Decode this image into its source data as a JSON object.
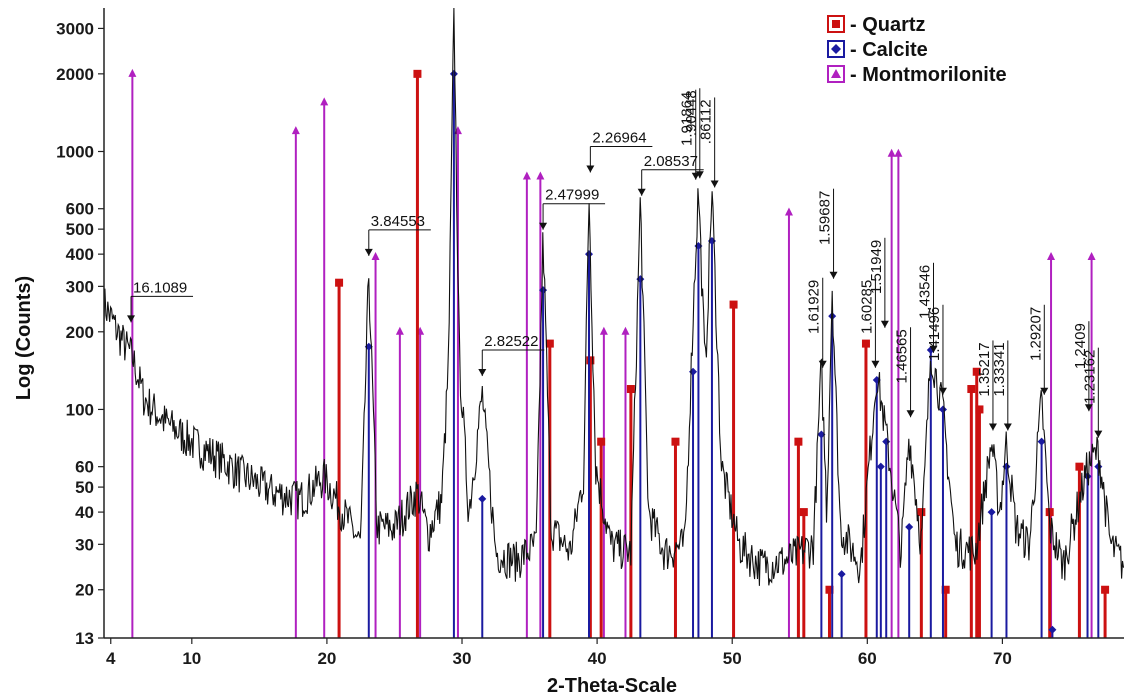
{
  "chart_data": {
    "type": "line",
    "xlabel": "2-Theta-Scale",
    "ylabel": "Log (Counts)",
    "y_scale": "log",
    "xlim": [
      3.5,
      79
    ],
    "ylim": [
      13,
      3600
    ],
    "x_ticks": [
      4,
      10,
      20,
      30,
      40,
      50,
      60,
      70
    ],
    "y_ticks": [
      13,
      20,
      30,
      40,
      50,
      60,
      100,
      200,
      300,
      400,
      500,
      600,
      1000,
      2000,
      3000
    ],
    "colors": {
      "quartz": "#cc1111",
      "calcite": "#1a1aa0",
      "montmorillonite": "#b020c0",
      "pattern": "#111111"
    },
    "legend": {
      "placement": "top-right",
      "entries": [
        {
          "label": "- Quartz",
          "marker": "square",
          "color": "#cc1111"
        },
        {
          "label": "- Calcite",
          "marker": "diamond",
          "color": "#1a1aa0"
        },
        {
          "label": "- Montmorilonite",
          "marker": "triangle",
          "color": "#b020c0"
        }
      ]
    },
    "reference_lines": {
      "quartz": [
        [
          20.9,
          310
        ],
        [
          26.7,
          2000
        ],
        [
          36.5,
          180
        ],
        [
          39.5,
          155
        ],
        [
          40.3,
          75
        ],
        [
          42.5,
          120
        ],
        [
          45.8,
          75
        ],
        [
          50.1,
          255
        ],
        [
          54.9,
          75
        ],
        [
          55.3,
          40
        ],
        [
          57.2,
          20
        ],
        [
          59.9,
          180
        ],
        [
          64.0,
          40
        ],
        [
          65.8,
          20
        ],
        [
          67.7,
          120
        ],
        [
          68.1,
          140
        ],
        [
          68.3,
          100
        ],
        [
          73.5,
          40
        ],
        [
          75.7,
          60
        ],
        [
          77.6,
          20
        ]
      ],
      "calcite": [
        [
          23.1,
          175
        ],
        [
          29.4,
          2000
        ],
        [
          31.5,
          45
        ],
        [
          36.0,
          290
        ],
        [
          39.4,
          400
        ],
        [
          43.2,
          320
        ],
        [
          47.1,
          140
        ],
        [
          47.5,
          430
        ],
        [
          48.5,
          450
        ],
        [
          56.6,
          80
        ],
        [
          57.4,
          230
        ],
        [
          58.1,
          23
        ],
        [
          60.7,
          130
        ],
        [
          61.0,
          60
        ],
        [
          61.4,
          75
        ],
        [
          63.1,
          35
        ],
        [
          64.7,
          170
        ],
        [
          65.6,
          100
        ],
        [
          69.2,
          40
        ],
        [
          70.3,
          60
        ],
        [
          72.9,
          75
        ],
        [
          73.7,
          14
        ],
        [
          76.3,
          55
        ],
        [
          77.1,
          60
        ]
      ],
      "montmorillonite": [
        [
          5.6,
          2000
        ],
        [
          17.7,
          1200
        ],
        [
          19.8,
          1550
        ],
        [
          23.6,
          390
        ],
        [
          25.4,
          200
        ],
        [
          26.9,
          200
        ],
        [
          29.7,
          1200
        ],
        [
          34.8,
          800
        ],
        [
          35.8,
          800
        ],
        [
          40.5,
          200
        ],
        [
          42.1,
          200
        ],
        [
          54.2,
          580
        ],
        [
          61.8,
          980
        ],
        [
          62.3,
          980
        ],
        [
          73.6,
          390
        ],
        [
          76.6,
          390
        ]
      ]
    },
    "peak_labels": [
      {
        "text": "16.1089",
        "x": 5.5,
        "y": 210,
        "orientation": "horizontal"
      },
      {
        "text": "3.84553",
        "x": 23.1,
        "y": 380,
        "orientation": "horizontal"
      },
      {
        "text": "2.82522",
        "x": 31.5,
        "y": 130,
        "orientation": "horizontal"
      },
      {
        "text": "2.47999",
        "x": 36.0,
        "y": 480,
        "orientation": "horizontal"
      },
      {
        "text": "2.26964",
        "x": 39.5,
        "y": 800,
        "orientation": "horizontal"
      },
      {
        "text": "2.08537",
        "x": 43.3,
        "y": 650,
        "orientation": "horizontal"
      },
      {
        "text": "1.91864",
        "x": 47.3,
        "y": 750,
        "orientation": "vertical"
      },
      {
        "text": ".90448",
        "x": 47.6,
        "y": 760,
        "orientation": "vertical"
      },
      {
        "text": ".86112",
        "x": 48.7,
        "y": 700,
        "orientation": "vertical"
      },
      {
        "text": "1.61929",
        "x": 56.7,
        "y": 140,
        "orientation": "vertical"
      },
      {
        "text": "1.59687",
        "x": 57.5,
        "y": 310,
        "orientation": "vertical"
      },
      {
        "text": "1.60285",
        "x": 60.6,
        "y": 140,
        "orientation": "vertical"
      },
      {
        "text": "1.51949",
        "x": 61.3,
        "y": 200,
        "orientation": "vertical"
      },
      {
        "text": "1.46565",
        "x": 63.2,
        "y": 90,
        "orientation": "vertical"
      },
      {
        "text": "1.43546",
        "x": 64.9,
        "y": 160,
        "orientation": "vertical"
      },
      {
        "text": "1.41496",
        "x": 65.6,
        "y": 110,
        "orientation": "vertical"
      },
      {
        "text": "1.35217",
        "x": 69.3,
        "y": 80,
        "orientation": "vertical"
      },
      {
        "text": "1.33341",
        "x": 70.4,
        "y": 80,
        "orientation": "vertical"
      },
      {
        "text": "1.29207",
        "x": 73.1,
        "y": 110,
        "orientation": "vertical"
      },
      {
        "text": "1.2409",
        "x": 76.4,
        "y": 95,
        "orientation": "vertical"
      },
      {
        "text": "1.23162",
        "x": 77.1,
        "y": 75,
        "orientation": "vertical"
      }
    ],
    "pattern_envelope": [
      [
        3.5,
        260
      ],
      [
        4.5,
        200
      ],
      [
        5.6,
        160
      ],
      [
        6.5,
        110
      ],
      [
        8,
        90
      ],
      [
        10,
        75
      ],
      [
        12,
        65
      ],
      [
        14,
        55
      ],
      [
        16,
        48
      ],
      [
        18,
        45
      ],
      [
        19.8,
        55
      ],
      [
        21,
        42
      ],
      [
        22.5,
        30
      ],
      [
        23.1,
        340
      ],
      [
        23.7,
        35
      ],
      [
        25,
        35
      ],
      [
        26.7,
        48
      ],
      [
        27.5,
        33
      ],
      [
        28.5,
        45
      ],
      [
        29.0,
        150
      ],
      [
        29.4,
        3600
      ],
      [
        29.8,
        160
      ],
      [
        30.5,
        40
      ],
      [
        31.5,
        115
      ],
      [
        32.5,
        28
      ],
      [
        34,
        26
      ],
      [
        35.5,
        30
      ],
      [
        36.0,
        480
      ],
      [
        36.6,
        35
      ],
      [
        38,
        28
      ],
      [
        39.0,
        55
      ],
      [
        39.4,
        700
      ],
      [
        39.9,
        60
      ],
      [
        41,
        30
      ],
      [
        42.5,
        28
      ],
      [
        43.2,
        650
      ],
      [
        43.8,
        40
      ],
      [
        45,
        28
      ],
      [
        46.5,
        30
      ],
      [
        47.1,
        230
      ],
      [
        47.5,
        740
      ],
      [
        48.0,
        140
      ],
      [
        48.5,
        720
      ],
      [
        49.2,
        60
      ],
      [
        50.5,
        30
      ],
      [
        52,
        25
      ],
      [
        54,
        26
      ],
      [
        56,
        30
      ],
      [
        56.6,
        150
      ],
      [
        57.0,
        40
      ],
      [
        57.4,
        300
      ],
      [
        58,
        35
      ],
      [
        59.5,
        25
      ],
      [
        60.7,
        140
      ],
      [
        61.4,
        80
      ],
      [
        62.5,
        28
      ],
      [
        63.1,
        80
      ],
      [
        64.0,
        30
      ],
      [
        64.7,
        170
      ],
      [
        65.6,
        100
      ],
      [
        66.5,
        30
      ],
      [
        68,
        28
      ],
      [
        69.2,
        75
      ],
      [
        69.8,
        40
      ],
      [
        70.3,
        75
      ],
      [
        71,
        35
      ],
      [
        72,
        30
      ],
      [
        72.9,
        110
      ],
      [
        73.5,
        35
      ],
      [
        74.5,
        25
      ],
      [
        76.3,
        60
      ],
      [
        77.1,
        70
      ],
      [
        78,
        30
      ],
      [
        79,
        25
      ]
    ]
  }
}
